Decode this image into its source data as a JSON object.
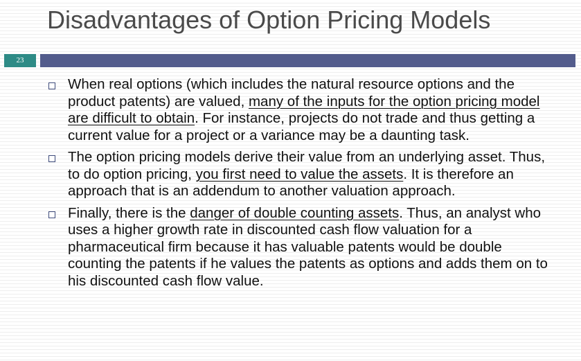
{
  "slide": {
    "title": "Disadvantages of Option Pricing Models",
    "number": "23",
    "accent_color": "#2e8b86",
    "rule_color": "#535c8c"
  },
  "bullets": [
    {
      "marker_icon": "square-bullet-icon",
      "before": "When real options (which includes the natural resource options and the product patents) are valued, ",
      "underlined": "many of the inputs for the option pricing model are difficult to obtain",
      "after": ". For instance, projects do not trade and thus getting a current value for a project or a variance may be a daunting task."
    },
    {
      "marker_icon": "square-bullet-icon",
      "before": "The option pricing models derive their value from an underlying asset. Thus, to do option pricing, ",
      "underlined": "you first need to value the assets",
      "after": ". It is therefore an approach that is an addendum to another valuation approach."
    },
    {
      "marker_icon": "square-bullet-icon",
      "before": "Finally, there is the ",
      "underlined": "danger of double counting assets",
      "after": ". Thus, an analyst who uses a higher growth rate in discounted cash flow valuation for a pharmaceutical firm because it has valuable patents would be double counting the patents if he values the patents as options and adds them on to his discounted cash flow value."
    }
  ]
}
